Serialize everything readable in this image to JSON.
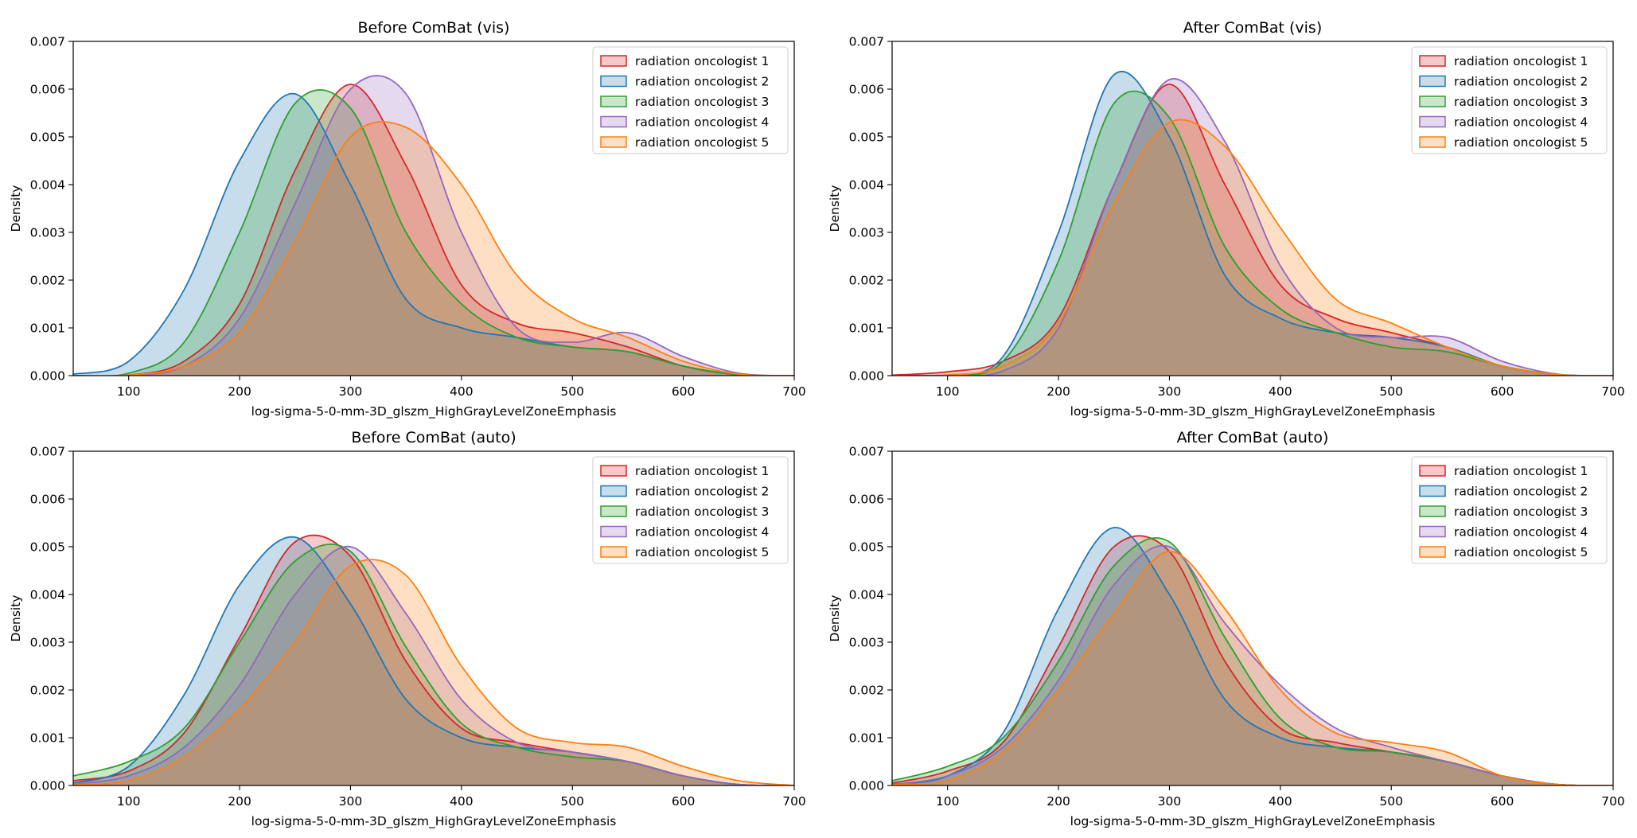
{
  "figure": {
    "shared": {
      "type": "area",
      "xlabel": "log-sigma-5-0-mm-3D_glszm_HighGrayLevelZoneEmphasis",
      "ylabel": "Density",
      "xlim": [
        50,
        700
      ],
      "ylim": [
        0,
        0.007
      ],
      "xticks": [
        "100",
        "200",
        "300",
        "400",
        "500",
        "600",
        "700"
      ],
      "yticks": [
        "0.000",
        "0.001",
        "0.002",
        "0.003",
        "0.004",
        "0.005",
        "0.006",
        "0.007"
      ],
      "legend_position": "top-right",
      "series_colors": [
        "#d62728",
        "#1f77b4",
        "#2ca02c",
        "#9467bd",
        "#ff7f0e"
      ],
      "series_names": [
        "radiation oncologist 1",
        "radiation oncologist 2",
        "radiation oncologist 3",
        "radiation oncologist 4",
        "radiation oncologist 5"
      ]
    }
  },
  "chart_data": [
    {
      "type": "area",
      "title": "Before ComBat (vis)",
      "xlabel": "log-sigma-5-0-mm-3D_glszm_HighGrayLevelZoneEmphasis",
      "ylabel": "Density",
      "xlim": [
        50,
        700
      ],
      "ylim": [
        0,
        0.007
      ],
      "series": [
        {
          "name": "radiation oncologist 1",
          "x": [
            50,
            100,
            150,
            200,
            250,
            300,
            350,
            400,
            450,
            500,
            550,
            600,
            650,
            700
          ],
          "values": [
            0,
            1e-05,
            0.0003,
            0.0015,
            0.0043,
            0.0061,
            0.0044,
            0.0019,
            0.0011,
            0.0009,
            0.0006,
            0.0002,
            2e-05,
            0
          ]
        },
        {
          "name": "radiation oncologist 2",
          "x": [
            50,
            100,
            150,
            200,
            250,
            300,
            350,
            400,
            450,
            500,
            550,
            600,
            650,
            700
          ],
          "values": [
            3e-05,
            0.0003,
            0.0018,
            0.0045,
            0.0059,
            0.004,
            0.0016,
            0.001,
            0.0008,
            0.0006,
            0.0005,
            0.0002,
            2e-05,
            0
          ]
        },
        {
          "name": "radiation oncologist 3",
          "x": [
            50,
            100,
            150,
            200,
            250,
            300,
            350,
            400,
            450,
            500,
            550,
            600,
            650,
            700
          ],
          "values": [
            0,
            5e-05,
            0.0007,
            0.003,
            0.0057,
            0.0056,
            0.003,
            0.0015,
            0.0008,
            0.0006,
            0.0005,
            0.0002,
            2e-05,
            0
          ]
        },
        {
          "name": "radiation oncologist 4",
          "x": [
            50,
            100,
            150,
            200,
            250,
            300,
            350,
            400,
            450,
            500,
            550,
            600,
            650,
            700
          ],
          "values": [
            0,
            1e-05,
            0.0002,
            0.0012,
            0.0036,
            0.006,
            0.0059,
            0.003,
            0.001,
            0.0007,
            0.0009,
            0.0004,
            5e-05,
            0
          ]
        },
        {
          "name": "radiation oncologist 5",
          "x": [
            50,
            100,
            150,
            200,
            250,
            300,
            350,
            400,
            450,
            500,
            550,
            600,
            650,
            700
          ],
          "values": [
            0,
            1e-05,
            0.0002,
            0.0009,
            0.0028,
            0.005,
            0.0052,
            0.004,
            0.0021,
            0.0012,
            0.0008,
            0.0003,
            3e-05,
            0
          ]
        }
      ]
    },
    {
      "type": "area",
      "title": "After ComBat (vis)",
      "xlabel": "log-sigma-5-0-mm-3D_glszm_HighGrayLevelZoneEmphasis",
      "ylabel": "Density",
      "xlim": [
        50,
        700
      ],
      "ylim": [
        0,
        0.007
      ],
      "series": [
        {
          "name": "radiation oncologist 1",
          "x": [
            50,
            100,
            150,
            200,
            250,
            300,
            350,
            400,
            450,
            500,
            550,
            600,
            650,
            700
          ],
          "values": [
            1e-05,
            8e-05,
            0.0003,
            0.0012,
            0.004,
            0.0061,
            0.004,
            0.0019,
            0.0012,
            0.0009,
            0.0006,
            0.0002,
            2e-05,
            0
          ]
        },
        {
          "name": "radiation oncologist 2",
          "x": [
            50,
            100,
            150,
            200,
            250,
            300,
            350,
            400,
            450,
            500,
            550,
            600,
            650,
            700
          ],
          "values": [
            0,
            1e-05,
            0.0004,
            0.003,
            0.0063,
            0.005,
            0.0021,
            0.0012,
            0.0009,
            0.0008,
            0.0006,
            0.0002,
            2e-05,
            0
          ]
        },
        {
          "name": "radiation oncologist 3",
          "x": [
            50,
            100,
            150,
            200,
            250,
            300,
            350,
            400,
            450,
            500,
            550,
            600,
            650,
            700
          ],
          "values": [
            0,
            1e-05,
            0.0003,
            0.0024,
            0.0057,
            0.0054,
            0.0027,
            0.0014,
            0.0009,
            0.0006,
            0.0005,
            0.0002,
            2e-05,
            0
          ]
        },
        {
          "name": "radiation oncologist 4",
          "x": [
            50,
            100,
            150,
            200,
            250,
            300,
            350,
            400,
            450,
            500,
            550,
            600,
            650,
            700
          ],
          "values": [
            0,
            1e-05,
            0.0001,
            0.001,
            0.004,
            0.0062,
            0.0049,
            0.0023,
            0.001,
            0.0008,
            0.0008,
            0.0003,
            3e-05,
            0
          ]
        },
        {
          "name": "radiation oncologist 5",
          "x": [
            50,
            100,
            150,
            200,
            250,
            300,
            350,
            400,
            450,
            500,
            550,
            600,
            650,
            700
          ],
          "values": [
            0,
            1e-05,
            0.0002,
            0.0011,
            0.0036,
            0.0053,
            0.0048,
            0.0031,
            0.0016,
            0.0011,
            0.0006,
            0.0002,
            2e-05,
            0
          ]
        }
      ]
    },
    {
      "type": "area",
      "title": "Before ComBat (auto)",
      "xlabel": "log-sigma-5-0-mm-3D_glszm_HighGrayLevelZoneEmphasis",
      "ylabel": "Density",
      "xlim": [
        50,
        700
      ],
      "ylim": [
        0,
        0.007
      ],
      "series": [
        {
          "name": "radiation oncologist 1",
          "x": [
            50,
            100,
            150,
            200,
            250,
            300,
            350,
            400,
            450,
            500,
            550,
            600,
            650,
            700
          ],
          "values": [
            0.0001,
            0.0003,
            0.0011,
            0.0031,
            0.0051,
            0.0048,
            0.0026,
            0.0012,
            0.0009,
            0.0007,
            0.0005,
            0.0002,
            2e-05,
            0
          ]
        },
        {
          "name": "radiation oncologist 2",
          "x": [
            50,
            100,
            150,
            200,
            250,
            300,
            350,
            400,
            450,
            500,
            550,
            600,
            650,
            700
          ],
          "values": [
            5e-05,
            0.0004,
            0.0019,
            0.0042,
            0.0052,
            0.0038,
            0.0018,
            0.001,
            0.0008,
            0.0007,
            0.0005,
            0.0002,
            2e-05,
            0
          ]
        },
        {
          "name": "radiation oncologist 3",
          "x": [
            50,
            100,
            150,
            200,
            250,
            300,
            350,
            400,
            450,
            500,
            550,
            600,
            650,
            700
          ],
          "values": [
            0.0002,
            0.0005,
            0.0012,
            0.003,
            0.0047,
            0.0049,
            0.0029,
            0.0013,
            0.0008,
            0.0006,
            0.0005,
            0.0002,
            2e-05,
            0
          ]
        },
        {
          "name": "radiation oncologist 4",
          "x": [
            50,
            100,
            150,
            200,
            250,
            300,
            350,
            400,
            450,
            500,
            550,
            600,
            650,
            700
          ],
          "values": [
            3e-05,
            0.0002,
            0.0008,
            0.0021,
            0.004,
            0.005,
            0.0036,
            0.0018,
            0.0009,
            0.0007,
            0.0005,
            0.0002,
            2e-05,
            0
          ]
        },
        {
          "name": "radiation oncologist 5",
          "x": [
            50,
            100,
            150,
            200,
            250,
            300,
            350,
            400,
            450,
            500,
            550,
            600,
            650,
            700
          ],
          "values": [
            2e-05,
            0.0001,
            0.0006,
            0.0016,
            0.003,
            0.0046,
            0.0044,
            0.0025,
            0.0012,
            0.0009,
            0.0008,
            0.0004,
            0.0001,
            0
          ]
        }
      ]
    },
    {
      "type": "area",
      "title": "After ComBat (auto)",
      "xlabel": "log-sigma-5-0-mm-3D_glszm_HighGrayLevelZoneEmphasis",
      "ylabel": "Density",
      "xlim": [
        50,
        700
      ],
      "ylim": [
        0,
        0.007
      ],
      "series": [
        {
          "name": "radiation oncologist 1",
          "x": [
            50,
            100,
            150,
            200,
            250,
            300,
            350,
            400,
            450,
            500,
            550,
            600,
            650,
            700
          ],
          "values": [
            5e-05,
            0.0003,
            0.0009,
            0.0029,
            0.005,
            0.0049,
            0.0026,
            0.0012,
            0.0009,
            0.0007,
            0.0005,
            0.0002,
            2e-05,
            0
          ]
        },
        {
          "name": "radiation oncologist 2",
          "x": [
            50,
            100,
            150,
            200,
            250,
            300,
            350,
            400,
            450,
            500,
            550,
            600,
            650,
            700
          ],
          "values": [
            3e-05,
            0.0002,
            0.0011,
            0.0037,
            0.0054,
            0.004,
            0.0018,
            0.001,
            0.0008,
            0.0007,
            0.0005,
            0.0002,
            2e-05,
            0
          ]
        },
        {
          "name": "radiation oncologist 3",
          "x": [
            50,
            100,
            150,
            200,
            250,
            300,
            350,
            400,
            450,
            500,
            550,
            600,
            650,
            700
          ],
          "values": [
            0.0001,
            0.0004,
            0.001,
            0.0026,
            0.0046,
            0.0051,
            0.0031,
            0.0014,
            0.0008,
            0.0007,
            0.0005,
            0.0002,
            2e-05,
            0
          ]
        },
        {
          "name": "radiation oncologist 4",
          "x": [
            50,
            100,
            150,
            200,
            250,
            300,
            350,
            400,
            450,
            500,
            550,
            600,
            650,
            700
          ],
          "values": [
            2e-05,
            0.0002,
            0.0008,
            0.0022,
            0.0042,
            0.005,
            0.0034,
            0.0021,
            0.0012,
            0.0008,
            0.0005,
            0.0002,
            2e-05,
            0
          ]
        },
        {
          "name": "radiation oncologist 5",
          "x": [
            50,
            100,
            150,
            200,
            250,
            300,
            350,
            400,
            450,
            500,
            550,
            600,
            650,
            700
          ],
          "values": [
            2e-05,
            0.0001,
            0.0007,
            0.002,
            0.0036,
            0.0049,
            0.0037,
            0.002,
            0.0011,
            0.0009,
            0.0007,
            0.0002,
            2e-05,
            0
          ]
        }
      ]
    }
  ]
}
